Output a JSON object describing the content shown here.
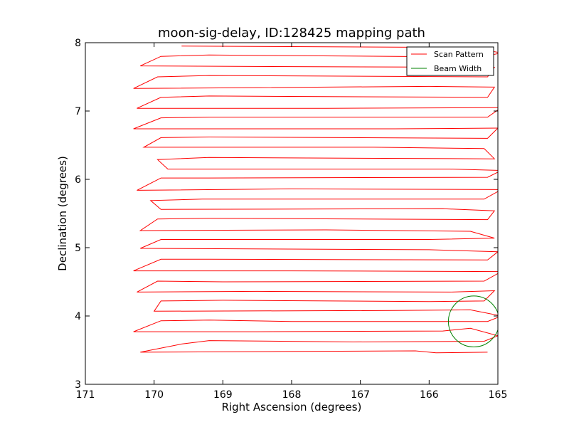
{
  "chart_data": {
    "type": "line",
    "title": "moon-sig-delay, ID:128425 mapping path",
    "xlabel": "Right Ascension (degrees)",
    "ylabel": "Declination (degrees)",
    "xlim": [
      171,
      165
    ],
    "ylim": [
      3,
      8
    ],
    "xticks": [
      171,
      170,
      169,
      168,
      167,
      166,
      165
    ],
    "yticks": [
      3,
      4,
      5,
      6,
      7,
      8
    ],
    "xtick_labels": [
      "171",
      "170",
      "169",
      "168",
      "167",
      "166",
      "165"
    ],
    "ytick_labels": [
      "3",
      "4",
      "5",
      "6",
      "7",
      "8"
    ],
    "grid": false,
    "legend_position": "top-right",
    "series": [
      {
        "name": "Scan Pattern",
        "color": "#ff0000",
        "points": [
          [
            165.15,
            3.47
          ],
          [
            165.9,
            3.46
          ],
          [
            166.2,
            3.49
          ],
          [
            168.2,
            3.48
          ],
          [
            170.2,
            3.47
          ],
          [
            169.6,
            3.59
          ],
          [
            169.2,
            3.64
          ],
          [
            167.1,
            3.62
          ],
          [
            165.2,
            3.63
          ],
          [
            165.0,
            3.71
          ],
          [
            165.4,
            3.82
          ],
          [
            165.8,
            3.78
          ],
          [
            168.5,
            3.77
          ],
          [
            170.3,
            3.77
          ],
          [
            169.9,
            3.93
          ],
          [
            169.2,
            3.94
          ],
          [
            168.0,
            3.92
          ],
          [
            165.15,
            3.92
          ],
          [
            164.95,
            4.0
          ],
          [
            165.4,
            4.09
          ],
          [
            166.5,
            4.08
          ],
          [
            170.0,
            4.07
          ],
          [
            169.9,
            4.22
          ],
          [
            169.0,
            4.23
          ],
          [
            166.0,
            4.21
          ],
          [
            165.2,
            4.22
          ],
          [
            165.05,
            4.37
          ],
          [
            165.7,
            4.35
          ],
          [
            168.5,
            4.36
          ],
          [
            170.25,
            4.35
          ],
          [
            169.95,
            4.51
          ],
          [
            169.0,
            4.5
          ],
          [
            165.2,
            4.51
          ],
          [
            164.95,
            4.65
          ],
          [
            168.0,
            4.66
          ],
          [
            170.3,
            4.66
          ],
          [
            169.9,
            4.83
          ],
          [
            169.2,
            4.83
          ],
          [
            165.15,
            4.82
          ],
          [
            165.0,
            4.94
          ],
          [
            166.0,
            4.97
          ],
          [
            170.2,
            4.99
          ],
          [
            169.9,
            5.12
          ],
          [
            166.0,
            5.12
          ],
          [
            165.05,
            5.14
          ],
          [
            165.4,
            5.24
          ],
          [
            167.5,
            5.26
          ],
          [
            170.2,
            5.25
          ],
          [
            169.95,
            5.42
          ],
          [
            169.2,
            5.43
          ],
          [
            165.15,
            5.41
          ],
          [
            165.05,
            5.54
          ],
          [
            165.8,
            5.57
          ],
          [
            169.9,
            5.56
          ],
          [
            170.05,
            5.69
          ],
          [
            169.3,
            5.71
          ],
          [
            165.2,
            5.71
          ],
          [
            164.95,
            5.85
          ],
          [
            168.0,
            5.86
          ],
          [
            170.25,
            5.84
          ],
          [
            169.9,
            6.02
          ],
          [
            169.2,
            6.02
          ],
          [
            165.15,
            6.03
          ],
          [
            164.95,
            6.13
          ],
          [
            165.7,
            6.15
          ],
          [
            169.8,
            6.15
          ],
          [
            169.95,
            6.29
          ],
          [
            169.2,
            6.32
          ],
          [
            165.05,
            6.3
          ],
          [
            165.2,
            6.45
          ],
          [
            166.8,
            6.47
          ],
          [
            170.15,
            6.47
          ],
          [
            169.9,
            6.61
          ],
          [
            169.2,
            6.62
          ],
          [
            165.15,
            6.6
          ],
          [
            165.0,
            6.75
          ],
          [
            166.5,
            6.74
          ],
          [
            170.3,
            6.74
          ],
          [
            169.9,
            6.9
          ],
          [
            169.2,
            6.91
          ],
          [
            165.15,
            6.91
          ],
          [
            164.95,
            7.05
          ],
          [
            167.5,
            7.04
          ],
          [
            170.25,
            7.04
          ],
          [
            169.9,
            7.2
          ],
          [
            169.2,
            7.22
          ],
          [
            165.15,
            7.2
          ],
          [
            165.05,
            7.35
          ],
          [
            166.0,
            7.36
          ],
          [
            170.3,
            7.33
          ],
          [
            169.95,
            7.5
          ],
          [
            169.2,
            7.52
          ],
          [
            165.15,
            7.5
          ],
          [
            165.05,
            7.64
          ],
          [
            168.0,
            7.65
          ],
          [
            170.2,
            7.66
          ],
          [
            169.9,
            7.8
          ],
          [
            169.2,
            7.82
          ],
          [
            165.25,
            7.79
          ],
          [
            164.95,
            7.85
          ],
          [
            165.4,
            7.93
          ],
          [
            169.6,
            7.95
          ]
        ]
      },
      {
        "name": "Beam Width",
        "color": "#008000",
        "shape": "circle",
        "center": [
          165.35,
          3.92
        ],
        "radius_degrees": 0.37
      }
    ]
  }
}
